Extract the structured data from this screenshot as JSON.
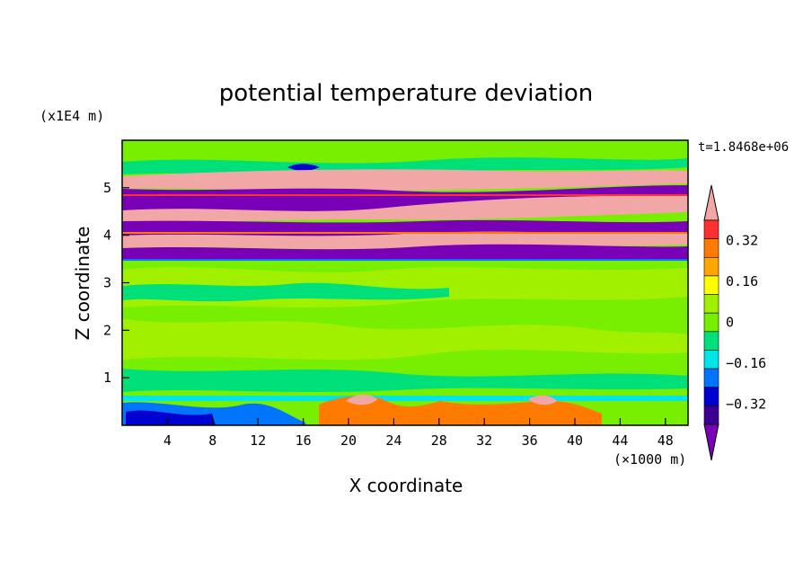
{
  "chart_data": {
    "type": "heatmap",
    "title": "potential temperature deviation",
    "xlabel": "X coordinate",
    "ylabel": "Z coordinate",
    "x_unit": "(×1000 m)",
    "y_unit": "(x1E4 m)",
    "time_label": "t=1.8468e+06",
    "xlim": [
      0,
      50
    ],
    "ylim": [
      0,
      6
    ],
    "x_ticks": [
      4,
      8,
      12,
      16,
      20,
      24,
      28,
      32,
      36,
      40,
      44,
      48
    ],
    "y_ticks": [
      1,
      2,
      3,
      4,
      5
    ],
    "colorbar": {
      "levels": [
        -0.48,
        -0.4,
        -0.32,
        -0.24,
        -0.16,
        -0.08,
        0,
        0.08,
        0.16,
        0.24,
        0.32,
        0.4,
        0.48
      ],
      "labeled_levels": [
        0.32,
        0.16,
        0,
        -0.16,
        -0.32
      ],
      "labels": [
        "0.32",
        "0.16",
        "0",
        "−0.16",
        "−0.32"
      ],
      "colors_top_to_bottom": [
        "#f2a7a7",
        "#ff3030",
        "#ff7a00",
        "#ffa500",
        "#ffff00",
        "#a0f000",
        "#78ee00",
        "#00e07a",
        "#00e5e5",
        "#0075ff",
        "#0000d0",
        "#3a0090",
        "#7a00b8"
      ]
    },
    "bands": [
      {
        "z_from": 5.2,
        "z_to": 5.05,
        "value": "high (>0.4)"
      },
      {
        "z_from": 5.05,
        "z_to": 4.7,
        "value": "low (<-0.4)"
      },
      {
        "z_from": 4.3,
        "z_to": 3.5,
        "value": "alternating high/low layers"
      },
      {
        "z_from": 3.5,
        "z_to": 0.6,
        "value": "near 0 (-0.08 to 0.08)"
      },
      {
        "z_from": 0.6,
        "z_to": 0,
        "value": "mixed, negative near x<20, positive near x 20-40"
      }
    ]
  },
  "colors": {
    "bg_green": "#78ee00",
    "light_green": "#a0f000",
    "teal_green": "#00e07a",
    "pink": "#f2a7a7",
    "purple": "#7a00b8",
    "red": "#ff3030",
    "orange": "#ff7a00",
    "cyan": "#00e5e5",
    "blue": "#0075ff",
    "navy": "#0000d0"
  }
}
